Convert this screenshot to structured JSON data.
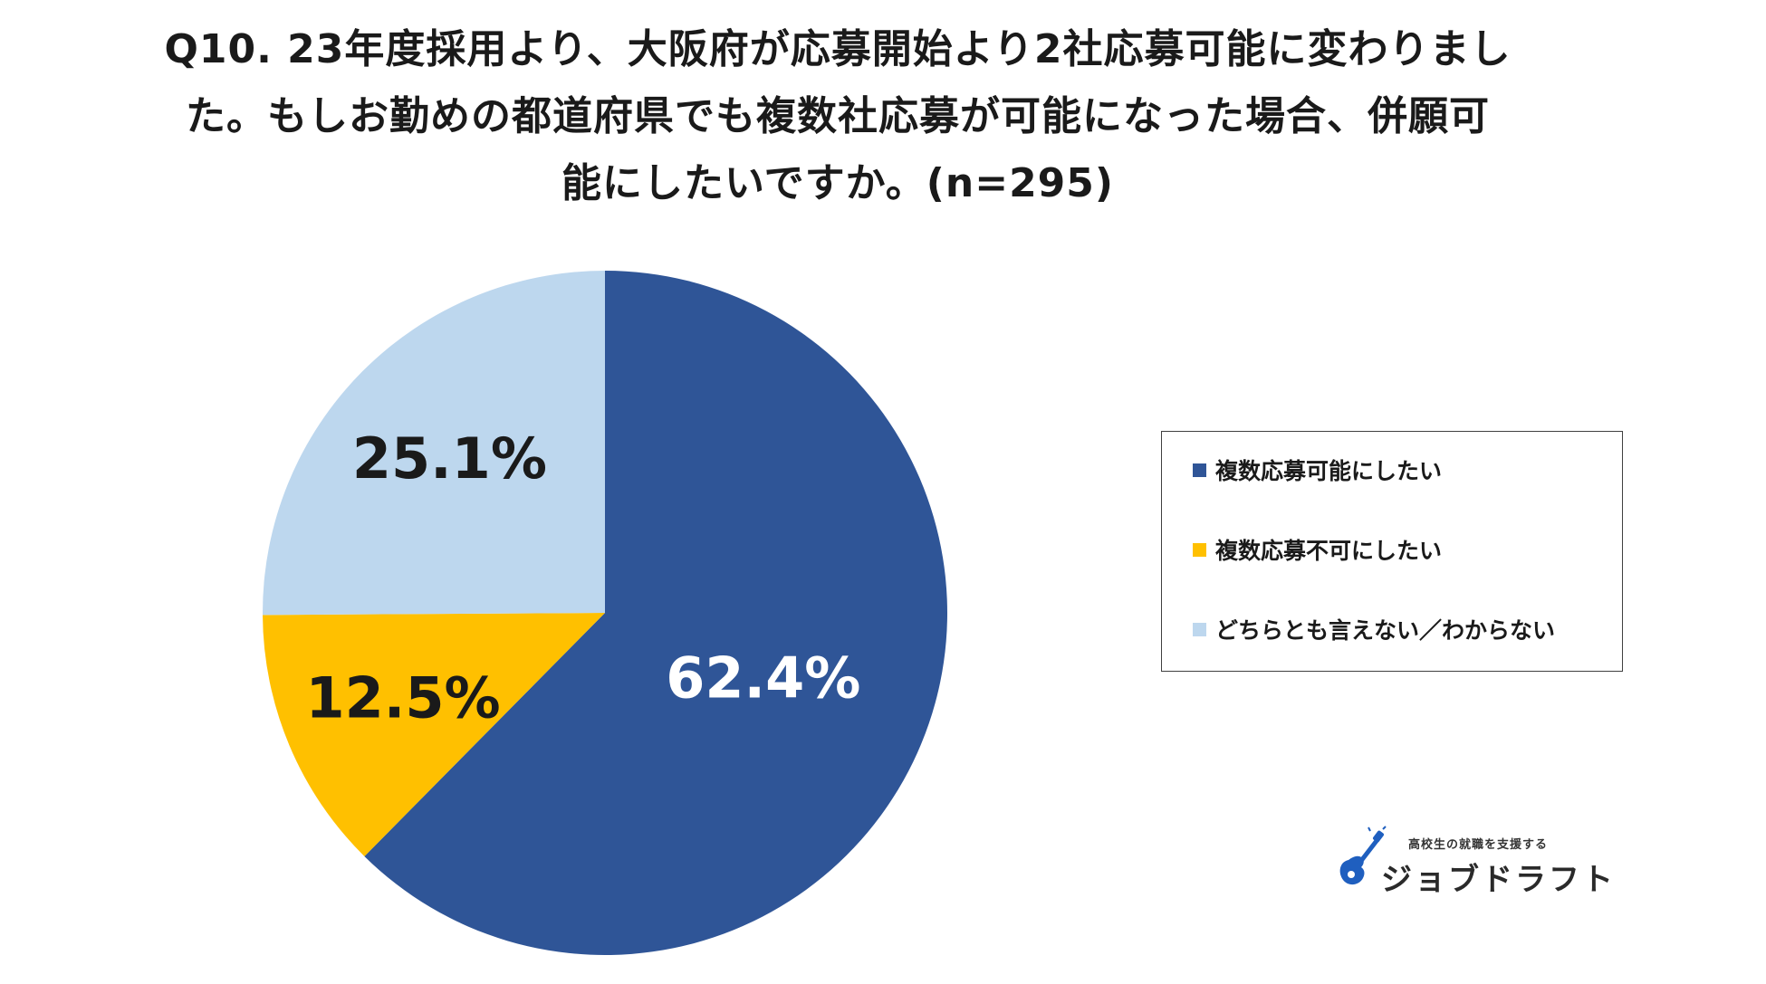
{
  "title": {
    "line1": "Q10. 23年度採用より、大阪府が応募開始より2社応募可能に変わりまし",
    "line2": "た。もしお勤めの都道府県でも複数社応募が可能になった場合、併願可",
    "line3": "能にしたいですか。(n=295)"
  },
  "chart_data": {
    "type": "pie",
    "title": "Q10. 23年度採用より、大阪府が応募開始より2社応募可能に変わりました。もしお勤めの都道府県でも複数社応募が可能になった場合、併願可能にしたいですか。(n=295)",
    "start_angle": "12 o'clock, clockwise",
    "legend_position": "right",
    "slices": [
      {
        "label": "複数応募可能にしたい",
        "value": 62.4,
        "display": "62.4%",
        "color": "#2f5597",
        "label_color": "#ffffff"
      },
      {
        "label": "複数応募不可にしたい",
        "value": 12.5,
        "display": "12.5%",
        "color": "#ffc000",
        "label_color": "#1a1a1a"
      },
      {
        "label": "どちらとも言えない／わからない",
        "value": 25.1,
        "display": "25.1%",
        "color": "#bdd7ee",
        "label_color": "#1a1a1a"
      }
    ]
  },
  "logo": {
    "tagline": "高校生の就職を支援する",
    "name": "ジョブドラフト",
    "icon": "guitar-logo-icon",
    "color": "#1f5fbf"
  }
}
